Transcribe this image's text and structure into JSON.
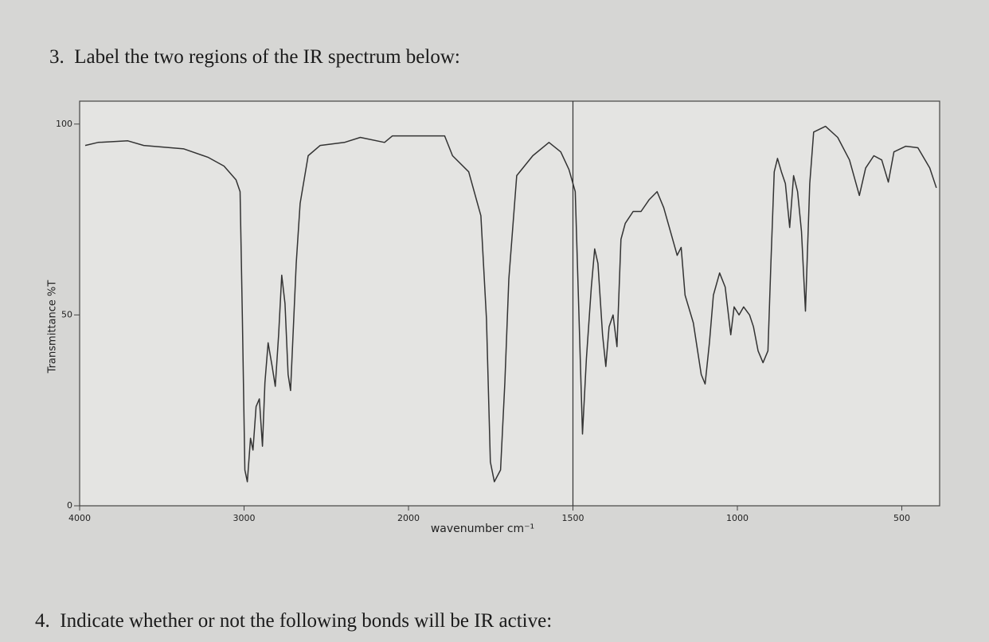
{
  "questions": [
    {
      "number": "3.",
      "text": "Label the two regions of the IR spectrum below:"
    },
    {
      "number": "4.",
      "text": "Indicate whether or not the following bonds will be IR active:"
    }
  ],
  "chart_data": {
    "type": "line",
    "xlabel": "wavenumber cm⁻¹",
    "ylabel": "Transmittance %T",
    "color": "#333333",
    "xlim": [
      4000,
      385
    ],
    "xticks": [
      4000,
      3000,
      2000,
      1500,
      1000,
      500
    ],
    "x_scale_break": 2000,
    "vline": 1500,
    "ylim": [
      0,
      106
    ],
    "yticks": [
      0,
      50,
      100
    ],
    "x": [
      3966,
      3888,
      3707,
      3610,
      3366,
      3220,
      3122,
      3049,
      3024,
      3010,
      2995,
      2980,
      2961,
      2946,
      2927,
      2907,
      2888,
      2873,
      2854,
      2829,
      2810,
      2790,
      2771,
      2751,
      2732,
      2717,
      2683,
      2659,
      2610,
      2537,
      2390,
      2293,
      2146,
      2098,
      1890,
      1866,
      1817,
      1780,
      1763,
      1751,
      1739,
      1720,
      1707,
      1695,
      1671,
      1622,
      1573,
      1537,
      1512,
      1493,
      1480,
      1471,
      1459,
      1444,
      1434,
      1424,
      1410,
      1400,
      1390,
      1378,
      1366,
      1354,
      1341,
      1317,
      1293,
      1268,
      1244,
      1224,
      1200,
      1183,
      1171,
      1159,
      1134,
      1110,
      1098,
      1085,
      1073,
      1054,
      1037,
      1020,
      1010,
      995,
      981,
      963,
      951,
      937,
      922,
      907,
      898,
      888,
      878,
      866,
      854,
      841,
      829,
      817,
      805,
      793,
      780,
      768,
      732,
      695,
      659,
      629,
      610,
      585,
      561,
      541,
      524,
      488,
      451,
      415,
      395
    ],
    "values": [
      94.4,
      95.2,
      95.6,
      94.4,
      93.5,
      91.3,
      89,
      85.4,
      82.3,
      49,
      9.4,
      6.3,
      17.7,
      14.6,
      26,
      28,
      15.6,
      32.3,
      42.7,
      36.5,
      31.3,
      44.8,
      60.4,
      53,
      34.4,
      30.2,
      63.5,
      79.2,
      91.7,
      94.4,
      95.2,
      96.5,
      95.2,
      96.9,
      96.9,
      91.7,
      87.5,
      76,
      49,
      11.5,
      6.3,
      9.4,
      32.3,
      59.4,
      86.5,
      91.7,
      95.2,
      92.7,
      88.1,
      82.3,
      44.8,
      18.8,
      38.5,
      57.3,
      67.3,
      63.5,
      44.8,
      36.5,
      46.9,
      50,
      41.7,
      69.8,
      74,
      77.1,
      77.1,
      80.2,
      82.3,
      78.1,
      70.8,
      65.6,
      67.7,
      55.2,
      47.9,
      34.4,
      31.9,
      42.7,
      55.2,
      61,
      57.3,
      44.8,
      52.1,
      50,
      52.1,
      50,
      46.9,
      40.6,
      37.5,
      40.6,
      63.5,
      87.5,
      91,
      87.5,
      84.4,
      72.9,
      86.5,
      82.3,
      71.9,
      51,
      84.4,
      97.9,
      99.4,
      96.5,
      90.6,
      81.3,
      88.5,
      91.7,
      90.6,
      84.8,
      92.7,
      94.2,
      93.8,
      88.5,
      83.3
    ]
  }
}
